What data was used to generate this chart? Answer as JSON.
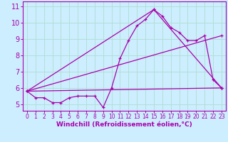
{
  "xlabel": "Windchill (Refroidissement éolien,°C)",
  "background_color": "#cceeff",
  "grid_color": "#b0ddd0",
  "line_color": "#aa00aa",
  "spine_color": "#aa00aa",
  "x_ticks": [
    0,
    1,
    2,
    3,
    4,
    5,
    6,
    7,
    8,
    9,
    10,
    11,
    12,
    13,
    14,
    15,
    16,
    17,
    18,
    19,
    20,
    21,
    22,
    23
  ],
  "ylim": [
    4.6,
    11.3
  ],
  "xlim": [
    -0.5,
    23.5
  ],
  "y_ticks": [
    5,
    6,
    7,
    8,
    9,
    10,
    11
  ],
  "series1_x": [
    0,
    1,
    2,
    3,
    4,
    5,
    6,
    7,
    8,
    9,
    10,
    11,
    12,
    13,
    14,
    15,
    16,
    17,
    18,
    19,
    20,
    21,
    22,
    23
  ],
  "series1_y": [
    5.8,
    5.4,
    5.4,
    5.1,
    5.1,
    5.4,
    5.5,
    5.5,
    5.5,
    4.8,
    6.0,
    7.8,
    8.9,
    9.8,
    10.2,
    10.8,
    10.4,
    9.7,
    9.4,
    8.9,
    8.9,
    9.2,
    6.5,
    6.0
  ],
  "series2_x": [
    0,
    23
  ],
  "series2_y": [
    5.8,
    6.0
  ],
  "series3_x": [
    0,
    23
  ],
  "series3_y": [
    5.8,
    9.2
  ],
  "series4_x": [
    0,
    15,
    23
  ],
  "series4_y": [
    5.8,
    10.8,
    6.0
  ],
  "xlabel_fontsize": 6.5,
  "ytick_fontsize": 7,
  "xtick_fontsize": 5.5
}
